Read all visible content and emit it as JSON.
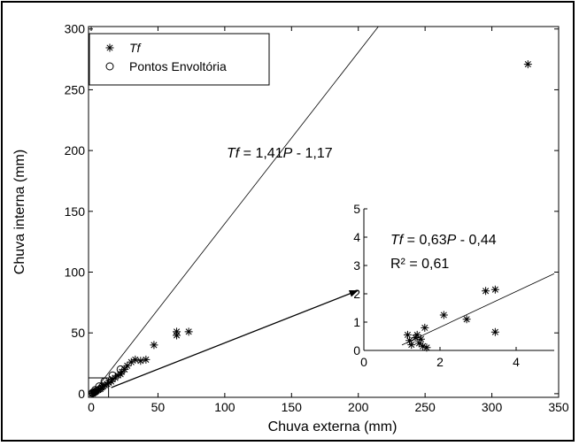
{
  "chart_data": [
    {
      "type": "scatter",
      "xlabel": "Chuva externa (mm)",
      "ylabel": "Chuva interna (mm)",
      "xlim": [
        -2,
        350
      ],
      "ylim": [
        -3,
        302
      ],
      "xticks": [
        0,
        50,
        100,
        150,
        200,
        250,
        300,
        350
      ],
      "yticks": [
        0,
        50,
        100,
        150,
        200,
        250,
        300
      ],
      "legend": {
        "position": "top-left",
        "entries": [
          {
            "marker": "asterisk",
            "label": "Tf",
            "italic": true
          },
          {
            "marker": "circle",
            "label": "Pontos Envoltória",
            "italic": false
          }
        ]
      },
      "series": [
        {
          "name": "Tf",
          "marker": "asterisk",
          "points": [
            [
              327,
              271
            ],
            [
              73,
              51
            ],
            [
              64,
              51
            ],
            [
              64,
              48
            ],
            [
              47,
              40
            ],
            [
              41,
              28
            ],
            [
              37,
              27
            ],
            [
              33,
              28
            ],
            [
              30,
              26
            ],
            [
              27,
              23
            ],
            [
              25,
              20
            ],
            [
              23,
              18
            ],
            [
              22,
              16
            ],
            [
              20,
              15
            ],
            [
              18,
              13
            ],
            [
              16,
              12
            ],
            [
              15,
              10
            ],
            [
              13,
              9
            ],
            [
              12,
              8
            ],
            [
              10,
              7
            ],
            [
              9,
              6
            ],
            [
              8,
              5
            ],
            [
              7,
              4
            ],
            [
              6,
              3.5
            ],
            [
              5,
              3
            ],
            [
              4,
              2.5
            ],
            [
              3.5,
              2
            ],
            [
              3,
              1.5
            ],
            [
              2.5,
              1.2
            ],
            [
              2,
              0.9
            ],
            [
              1.6,
              0.6
            ],
            [
              1.3,
              0.4
            ],
            [
              1,
              0.2
            ],
            [
              0.8,
              0.1
            ]
          ]
        },
        {
          "name": "Pontos Envoltória",
          "marker": "circle",
          "points": [
            [
              22,
              20
            ],
            [
              16,
              15
            ],
            [
              10,
              10
            ],
            [
              6,
              6
            ],
            [
              3,
              3
            ],
            [
              1,
              0.7
            ]
          ]
        }
      ],
      "fit_line": {
        "slope": 1.41,
        "intercept": -1.17,
        "x_range": [
          0,
          350
        ],
        "label_parts": [
          {
            "text": "Tf",
            "italic": true
          },
          {
            "text": " = 1,41",
            "italic": false
          },
          {
            "text": "P",
            "italic": true
          },
          {
            "text": " - 1,17",
            "italic": false
          }
        ]
      },
      "zoom_box": {
        "x": [
          -2,
          13
        ],
        "y": [
          -3,
          13
        ]
      },
      "arrow": {
        "from": [
          15,
          5
        ],
        "to": [
          200,
          85
        ]
      }
    },
    {
      "type": "scatter",
      "inset": true,
      "xlim": [
        0,
        5
      ],
      "ylim": [
        0,
        5
      ],
      "xticks": [
        0,
        2,
        4
      ],
      "yticks": [
        0,
        1,
        2,
        3,
        4,
        5
      ],
      "series": [
        {
          "name": "Tf",
          "marker": "asterisk",
          "points": [
            [
              1.15,
              0.55
            ],
            [
              1.2,
              0.35
            ],
            [
              1.25,
              0.2
            ],
            [
              1.35,
              0.45
            ],
            [
              1.4,
              0.55
            ],
            [
              1.45,
              0.25
            ],
            [
              1.5,
              0.4
            ],
            [
              1.55,
              0.15
            ],
            [
              1.6,
              0.8
            ],
            [
              1.65,
              0.1
            ],
            [
              2.1,
              1.25
            ],
            [
              2.7,
              1.1
            ],
            [
              3.2,
              2.1
            ],
            [
              3.45,
              2.15
            ],
            [
              3.45,
              0.65
            ]
          ]
        }
      ],
      "fit_line": {
        "slope": 0.63,
        "intercept": -0.44,
        "x_range": [
          1.0,
          5.0
        ],
        "label_parts": [
          {
            "text": "Tf",
            "italic": true
          },
          {
            "text": " = 0,63",
            "italic": false
          },
          {
            "text": "P",
            "italic": true
          },
          {
            "text": " - 0,44",
            "italic": false
          }
        ],
        "r2_label": "R² = 0,61"
      }
    }
  ]
}
